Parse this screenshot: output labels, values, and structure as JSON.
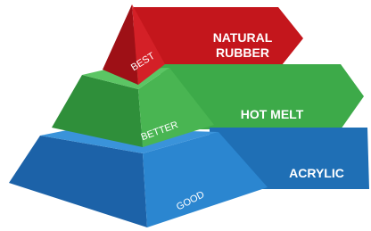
{
  "tiers": [
    {
      "level": "BEST",
      "label": [
        "NATURAL",
        "RUBBER"
      ]
    },
    {
      "level": "BETTER",
      "label": [
        "HOT MELT"
      ]
    },
    {
      "level": "GOOD",
      "label": [
        "ACRYLIC"
      ]
    }
  ]
}
